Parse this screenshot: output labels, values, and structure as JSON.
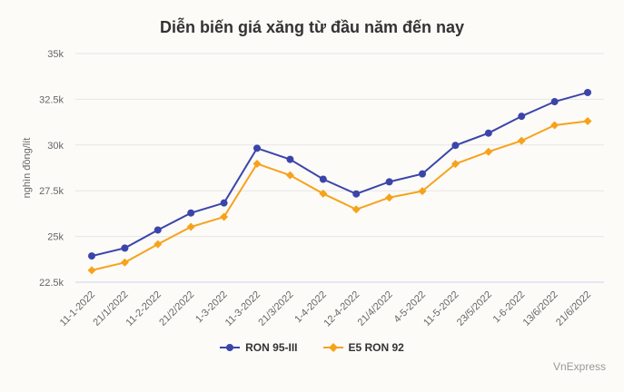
{
  "chart_data": {
    "type": "line",
    "title": "Diễn biến giá xăng từ đầu năm đến nay",
    "ylabel": "nghìn đồng/lít",
    "xlabel": "",
    "ylim": [
      22500,
      35000
    ],
    "yticks": [
      22500,
      25000,
      27500,
      30000,
      32500,
      35000
    ],
    "ytick_labels": [
      "22.5k",
      "25k",
      "27.5k",
      "30k",
      "32.5k",
      "35k"
    ],
    "grid": true,
    "legend": "bottom",
    "categories": [
      "11-1-2022",
      "21/1/2022",
      "11-2-2022",
      "21/2/2022",
      "1-3-2022",
      "11-3-2022",
      "21/3/2022",
      "1-4-2022",
      "12-4-2022",
      "21/4/2022",
      "4-5-2022",
      "11-5-2022",
      "23/5/2022",
      "1-6-2022",
      "13/6/2022",
      "21/6/2022"
    ],
    "series": [
      {
        "name": "RON 95-III",
        "color": "#3b45a9",
        "marker": "circle",
        "values": [
          23934,
          24366,
          25353,
          26284,
          26831,
          29824,
          29215,
          28130,
          27325,
          27988,
          28421,
          29980,
          30650,
          31570,
          32370,
          32870
        ]
      },
      {
        "name": "E5 RON 92",
        "color": "#f7a21b",
        "marker": "diamond",
        "values": [
          23152,
          23578,
          24575,
          25526,
          26070,
          28976,
          28345,
          27340,
          26480,
          27127,
          27479,
          28967,
          29633,
          30232,
          31082,
          31302
        ]
      }
    ]
  },
  "credit": "VnExpress"
}
